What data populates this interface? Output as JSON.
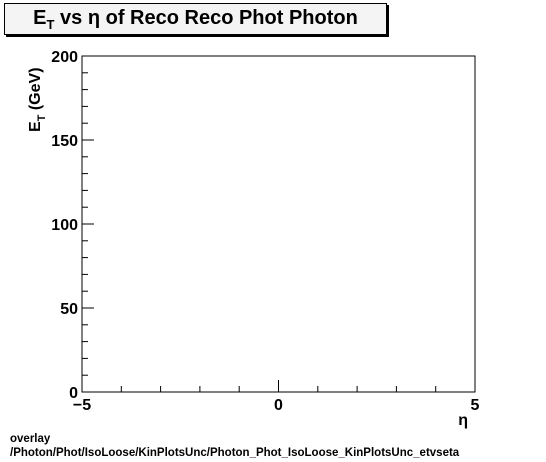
{
  "chart_data": {
    "type": "scatter",
    "title": "E_T vs η of Reco Reco Phot Photon",
    "title_parts": {
      "main": "E",
      "sub": "T",
      "rest": " vs  η of Reco Reco Phot Photon"
    },
    "xlabel": "η",
    "ylabel": "E_T (GeV)",
    "ylabel_parts": {
      "main": "E",
      "sub": "T",
      "rest": " (GeV)"
    },
    "xlim": [
      -5,
      5
    ],
    "ylim": [
      0,
      200
    ],
    "x_ticks": [
      -5,
      0,
      5
    ],
    "x_tick_labels": [
      "−5",
      "0",
      "5"
    ],
    "y_ticks": [
      0,
      50,
      100,
      150,
      200
    ],
    "y_tick_labels": [
      "0",
      "50",
      "100",
      "150",
      "200"
    ],
    "grid": false,
    "points": []
  },
  "footer": {
    "line1": "overlay",
    "line2": "/Photon/Phot/IsoLoose/KinPlotsUnc/Photon_Phot_IsoLoose_KinPlotsUnc_etvseta"
  }
}
